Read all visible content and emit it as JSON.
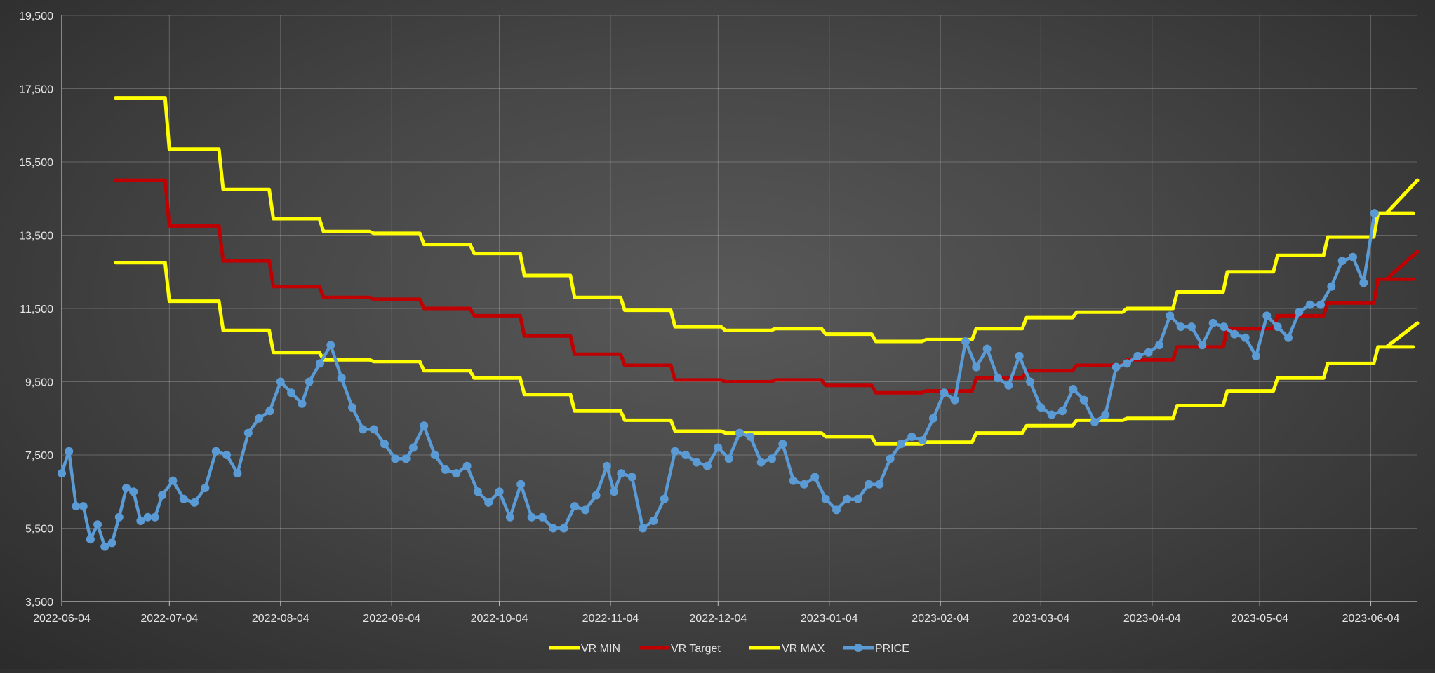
{
  "chart_data": {
    "type": "line",
    "title": "",
    "xlabel": "",
    "ylabel": "",
    "ylim": [
      3500,
      19500
    ],
    "y_ticks": [
      "3,500",
      "5,500",
      "7,500",
      "9,500",
      "11,500",
      "13,500",
      "15,500",
      "17,500",
      "19,500"
    ],
    "x_range": [
      "2022-06-04",
      "2023-06-17"
    ],
    "x_ticks": [
      "2022-06-04",
      "2022-07-04",
      "2022-08-04",
      "2022-09-04",
      "2022-10-04",
      "2022-11-04",
      "2022-12-04",
      "2023-01-04",
      "2023-02-04",
      "2023-03-04",
      "2023-04-04",
      "2023-05-04",
      "2023-06-04"
    ],
    "grid": true,
    "legend_position": "bottom",
    "series": [
      {
        "name": "VR MIN",
        "color": "#ffff00",
        "style": "step",
        "x": [
          "2022-06-19",
          "2022-07-04",
          "2022-07-19",
          "2022-08-02",
          "2022-08-16",
          "2022-08-30",
          "2022-09-13",
          "2022-09-27",
          "2022-10-11",
          "2022-10-25",
          "2022-11-08",
          "2022-11-22",
          "2022-12-06",
          "2022-12-20",
          "2023-01-03",
          "2023-01-17",
          "2023-01-31",
          "2023-02-14",
          "2023-02-28",
          "2023-03-14",
          "2023-03-28",
          "2023-04-11",
          "2023-04-25",
          "2023-05-09",
          "2023-05-23",
          "2023-06-06",
          "2023-06-17"
        ],
        "values": [
          12750,
          11700,
          10900,
          10300,
          10100,
          10050,
          9800,
          9600,
          9150,
          8700,
          8450,
          8150,
          8100,
          8100,
          8000,
          7800,
          7850,
          8100,
          8300,
          8450,
          8500,
          8850,
          9250,
          9600,
          10000,
          10450,
          11100
        ]
      },
      {
        "name": "VR Target",
        "color": "#c00000",
        "style": "step",
        "x": [
          "2022-06-19",
          "2022-07-04",
          "2022-07-19",
          "2022-08-02",
          "2022-08-16",
          "2022-08-30",
          "2022-09-13",
          "2022-09-27",
          "2022-10-11",
          "2022-10-25",
          "2022-11-08",
          "2022-11-22",
          "2022-12-06",
          "2022-12-20",
          "2023-01-03",
          "2023-01-17",
          "2023-01-31",
          "2023-02-14",
          "2023-02-28",
          "2023-03-14",
          "2023-03-28",
          "2023-04-11",
          "2023-04-25",
          "2023-05-09",
          "2023-05-23",
          "2023-06-06",
          "2023-06-17"
        ],
        "values": [
          15000,
          13750,
          12800,
          12100,
          11800,
          11750,
          11500,
          11300,
          10750,
          10250,
          9950,
          9550,
          9500,
          9550,
          9400,
          9200,
          9250,
          9600,
          9800,
          9950,
          10100,
          10450,
          10950,
          11300,
          11650,
          12300,
          13050
        ]
      },
      {
        "name": "VR MAX",
        "color": "#ffff00",
        "style": "step",
        "x": [
          "2022-06-19",
          "2022-07-04",
          "2022-07-19",
          "2022-08-02",
          "2022-08-16",
          "2022-08-30",
          "2022-09-13",
          "2022-09-27",
          "2022-10-11",
          "2022-10-25",
          "2022-11-08",
          "2022-11-22",
          "2022-12-06",
          "2022-12-20",
          "2023-01-03",
          "2023-01-17",
          "2023-01-31",
          "2023-02-14",
          "2023-02-28",
          "2023-03-14",
          "2023-03-28",
          "2023-04-11",
          "2023-04-25",
          "2023-05-09",
          "2023-05-23",
          "2023-06-06",
          "2023-06-17"
        ],
        "values": [
          17250,
          15850,
          14750,
          13950,
          13600,
          13550,
          13250,
          13000,
          12400,
          11800,
          11450,
          11000,
          10900,
          10950,
          10800,
          10600,
          10650,
          10950,
          11250,
          11400,
          11500,
          11950,
          12500,
          12950,
          13450,
          14100,
          15000
        ]
      },
      {
        "name": "PRICE",
        "color": "#5b9bd5",
        "style": "line-markers",
        "x": [
          "2022-06-04",
          "2022-06-06",
          "2022-06-08",
          "2022-06-10",
          "2022-06-12",
          "2022-06-14",
          "2022-06-16",
          "2022-06-18",
          "2022-06-20",
          "2022-06-22",
          "2022-06-24",
          "2022-06-26",
          "2022-06-28",
          "2022-06-30",
          "2022-07-02",
          "2022-07-05",
          "2022-07-08",
          "2022-07-11",
          "2022-07-14",
          "2022-07-17",
          "2022-07-20",
          "2022-07-23",
          "2022-07-26",
          "2022-07-29",
          "2022-08-01",
          "2022-08-04",
          "2022-08-07",
          "2022-08-10",
          "2022-08-12",
          "2022-08-15",
          "2022-08-18",
          "2022-08-21",
          "2022-08-24",
          "2022-08-27",
          "2022-08-30",
          "2022-09-02",
          "2022-09-05",
          "2022-09-08",
          "2022-09-10",
          "2022-09-13",
          "2022-09-16",
          "2022-09-19",
          "2022-09-22",
          "2022-09-25",
          "2022-09-28",
          "2022-10-01",
          "2022-10-04",
          "2022-10-07",
          "2022-10-10",
          "2022-10-13",
          "2022-10-16",
          "2022-10-19",
          "2022-10-22",
          "2022-10-25",
          "2022-10-28",
          "2022-10-31",
          "2022-11-03",
          "2022-11-05",
          "2022-11-07",
          "2022-11-10",
          "2022-11-13",
          "2022-11-16",
          "2022-11-19",
          "2022-11-22",
          "2022-11-25",
          "2022-11-28",
          "2022-12-01",
          "2022-12-04",
          "2022-12-07",
          "2022-12-10",
          "2022-12-13",
          "2022-12-16",
          "2022-12-19",
          "2022-12-22",
          "2022-12-25",
          "2022-12-28",
          "2022-12-31",
          "2023-01-03",
          "2023-01-06",
          "2023-01-09",
          "2023-01-12",
          "2023-01-15",
          "2023-01-18",
          "2023-01-21",
          "2023-01-24",
          "2023-01-27",
          "2023-01-30",
          "2023-02-02",
          "2023-02-05",
          "2023-02-08",
          "2023-02-11",
          "2023-02-14",
          "2023-02-17",
          "2023-02-20",
          "2023-02-23",
          "2023-02-26",
          "2023-03-01",
          "2023-03-04",
          "2023-03-07",
          "2023-03-10",
          "2023-03-13",
          "2023-03-16",
          "2023-03-19",
          "2023-03-22",
          "2023-03-25",
          "2023-03-28",
          "2023-03-31",
          "2023-04-03",
          "2023-04-06",
          "2023-04-09",
          "2023-04-12",
          "2023-04-15",
          "2023-04-18",
          "2023-04-21",
          "2023-04-24",
          "2023-04-27",
          "2023-04-30",
          "2023-05-03",
          "2023-05-06",
          "2023-05-09",
          "2023-05-12",
          "2023-05-15",
          "2023-05-18",
          "2023-05-21",
          "2023-05-24",
          "2023-05-27",
          "2023-05-30",
          "2023-06-02",
          "2023-06-05"
        ],
        "values": [
          7000,
          7600,
          6100,
          6100,
          5200,
          5600,
          5000,
          5100,
          5800,
          6600,
          6500,
          5700,
          5800,
          5800,
          6400,
          6800,
          6300,
          6200,
          6600,
          7600,
          7500,
          7000,
          8100,
          8500,
          8700,
          9500,
          9200,
          8900,
          9500,
          10000,
          10500,
          9600,
          8800,
          8200,
          8200,
          7800,
          7400,
          7400,
          7700,
          8300,
          7500,
          7100,
          7000,
          7200,
          6500,
          6200,
          6500,
          5800,
          6700,
          5800,
          5800,
          5500,
          5500,
          6100,
          6000,
          6400,
          7200,
          6500,
          7000,
          6900,
          5500,
          5700,
          6300,
          7600,
          7500,
          7300,
          7200,
          7700,
          7400,
          8100,
          8000,
          7300,
          7400,
          7800,
          6800,
          6700,
          6900,
          6300,
          6000,
          6300,
          6300,
          6700,
          6700,
          7400,
          7800,
          8000,
          7900,
          8500,
          9200,
          9000,
          10600,
          9900,
          10400,
          9600,
          9400,
          10200,
          9500,
          8800,
          8600,
          8700,
          9300,
          9000,
          8400,
          8600,
          9900,
          10000,
          10200,
          10300,
          10500,
          11300,
          11000,
          11000,
          10500,
          11100,
          11000,
          10800,
          10700,
          10200,
          11300,
          11000,
          10700,
          11400,
          11600,
          11600,
          12100,
          12800,
          12900,
          12200,
          14100
        ]
      }
    ]
  },
  "legend": {
    "items": [
      {
        "label": "VR MIN",
        "color": "#ffff00",
        "marker": false
      },
      {
        "label": "VR Target",
        "color": "#c00000",
        "marker": false
      },
      {
        "label": "VR MAX",
        "color": "#ffff00",
        "marker": false
      },
      {
        "label": "PRICE",
        "color": "#5b9bd5",
        "marker": true
      }
    ]
  }
}
